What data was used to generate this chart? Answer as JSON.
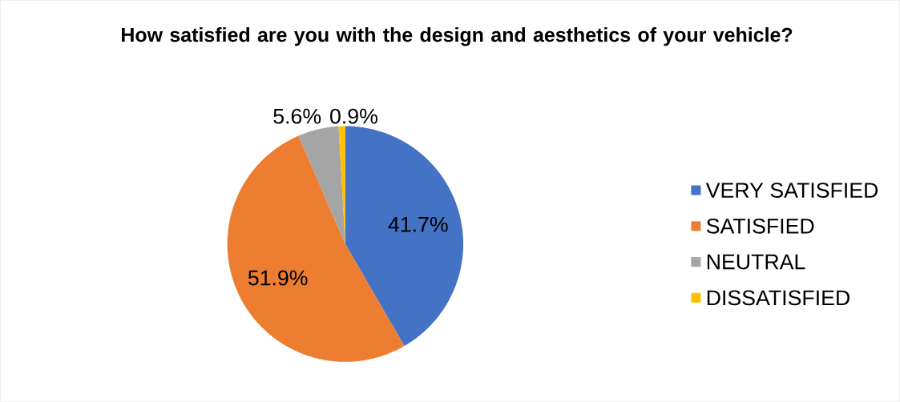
{
  "chart_data": {
    "type": "pie",
    "title": "How satisfied are you with the design and aesthetics of your vehicle?",
    "categories": [
      "VERY SATISFIED",
      "SATISFIED",
      "NEUTRAL",
      "DISSATISFIED"
    ],
    "values": [
      41.7,
      51.9,
      5.6,
      0.9
    ],
    "value_labels": [
      "41.7%",
      "51.9%",
      "5.6%",
      "0.9%"
    ],
    "colors": [
      "#4472c4",
      "#ed7d31",
      "#a5a5a5",
      "#ffc000"
    ],
    "legend": "right"
  }
}
